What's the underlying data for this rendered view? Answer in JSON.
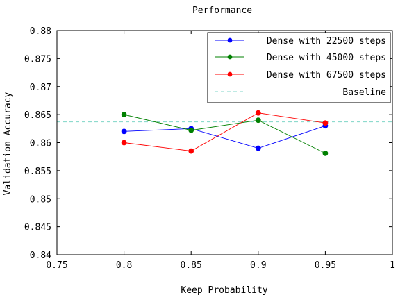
{
  "chart_data": {
    "type": "line",
    "title": "Performance",
    "xlabel": "Keep Probability",
    "ylabel": "Validation Accuracy",
    "xlim": [
      0.75,
      1.0
    ],
    "ylim": [
      0.84,
      0.88
    ],
    "xticks": [
      0.75,
      0.8,
      0.85,
      0.9,
      0.95,
      1.0
    ],
    "xtick_labels": [
      "0.75",
      "0.8",
      "0.85",
      "0.9",
      "0.95",
      "1"
    ],
    "yticks": [
      0.84,
      0.845,
      0.85,
      0.855,
      0.86,
      0.865,
      0.87,
      0.875,
      0.88
    ],
    "ytick_labels": [
      "0.84",
      "0.845",
      "0.85",
      "0.855",
      "0.86",
      "0.865",
      "0.87",
      "0.875",
      "0.88"
    ],
    "grid": false,
    "legend_position": "top-right",
    "x": [
      0.8,
      0.85,
      0.9,
      0.95
    ],
    "series": [
      {
        "name": "Dense with 22500 steps",
        "color": "#0000ff",
        "values": [
          0.862,
          0.8625,
          0.859,
          0.863
        ],
        "marker": "circle"
      },
      {
        "name": "Dense with 45000 steps",
        "color": "#008000",
        "values": [
          0.865,
          0.8622,
          0.864,
          0.8581
        ],
        "marker": "circle"
      },
      {
        "name": "Dense with 67500 steps",
        "color": "#ff0000",
        "values": [
          0.86,
          0.8585,
          0.8653,
          0.8635
        ],
        "marker": "circle"
      }
    ],
    "baseline": {
      "name": "Baseline",
      "value": 0.8637,
      "color": "#7fd6c8",
      "style": "dashed"
    }
  }
}
